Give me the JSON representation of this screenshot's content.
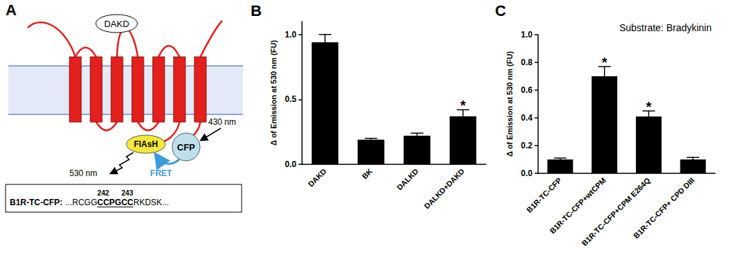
{
  "panel_a": {
    "panel": "A",
    "extracellular_label": "DAKD",
    "fluorophore": "FlAsH",
    "donor": "CFP",
    "excitation": "430 nm",
    "emission": "530 nm",
    "transfer": "FRET",
    "sequence": {
      "name": "B1R-TC-CFP:",
      "before": "...RCGG",
      "motif": "CCPGCC",
      "after": "RKDSK...",
      "positions": [
        242,
        243
      ]
    }
  },
  "chart_data": [
    {
      "panel": "B",
      "type": "bar",
      "categories": [
        "DAKD",
        "BK",
        "DALKD",
        "DALKD+DAKD"
      ],
      "values": [
        0.94,
        0.19,
        0.22,
        0.37
      ],
      "errors": [
        0.06,
        0.01,
        0.02,
        0.05
      ],
      "color": "#000000",
      "ylabel": "Δ of Emission at 530 nm (FU)",
      "ylim": [
        0,
        1.1
      ],
      "yticks": [
        {
          "value": 0,
          "label": "0.0"
        },
        0.5,
        {
          "value": 1,
          "label": "1.0"
        }
      ],
      "grid": false,
      "annotations": [
        {
          "category": "DALKD+DAKD",
          "text": "*"
        }
      ]
    },
    {
      "panel": "C",
      "type": "bar",
      "title": "Substrate: Bradykinin",
      "categories": [
        "B1R-TC-CFP",
        "B1R-TC-CFP+wtCPM",
        "B1R-TC-CFP+CPM E264Q",
        "B1R-TC-CFP+ CPD DIII"
      ],
      "values": [
        0.1,
        0.7,
        0.41,
        0.1
      ],
      "errors": [
        0.01,
        0.07,
        0.04,
        0.015
      ],
      "color": "#000000",
      "ylabel": "Δ of Emission at 530 nm (FU)",
      "ylim": [
        0,
        1.0
      ],
      "yticks": [
        {
          "value": 0,
          "label": "0.0"
        },
        0.2,
        0.4,
        0.6,
        0.8,
        {
          "value": 1,
          "label": "1.0"
        }
      ],
      "grid": false,
      "annotations": [
        {
          "category": "B1R-TC-CFP+wtCPM",
          "text": "*"
        },
        {
          "category": "B1R-TC-CFP+CPM E264Q",
          "text": "*"
        }
      ]
    }
  ]
}
